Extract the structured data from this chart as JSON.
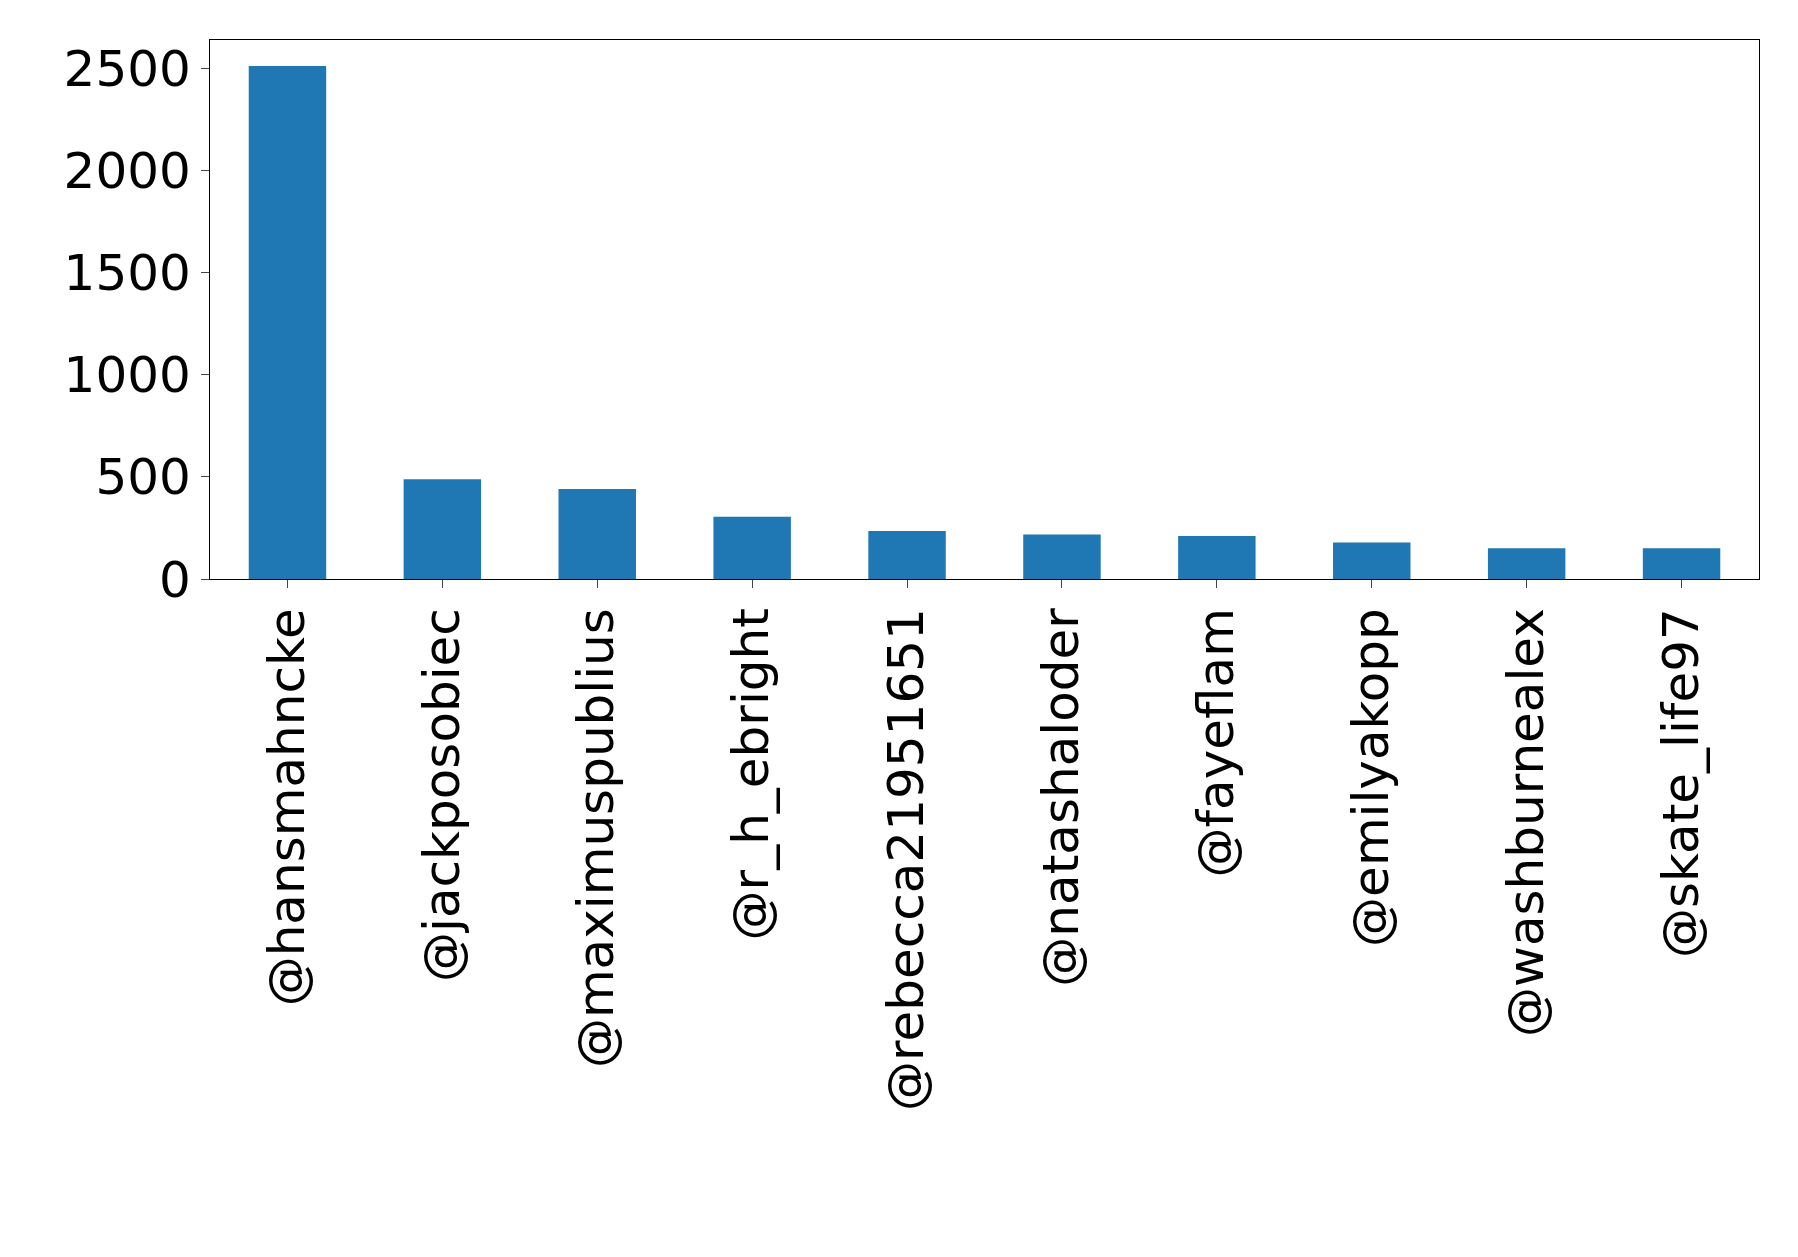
{
  "chart_data": {
    "type": "bar",
    "categories": [
      "@hansmahncke",
      "@jackposobiec",
      "@maximuspublius",
      "@r_h_ebright",
      "@rebecca21951651",
      "@natashaloder",
      "@fayeflam",
      "@emilyakopp",
      "@washburnealex",
      "@skate_life97"
    ],
    "values": [
      2513,
      489,
      441,
      305,
      235,
      218,
      211,
      179,
      151,
      151
    ],
    "color": "#1f77b4",
    "ylim": [
      0,
      2640
    ],
    "yticks": [
      0,
      500,
      1000,
      1500,
      2000,
      2500
    ],
    "grid": false,
    "legend": false
  }
}
